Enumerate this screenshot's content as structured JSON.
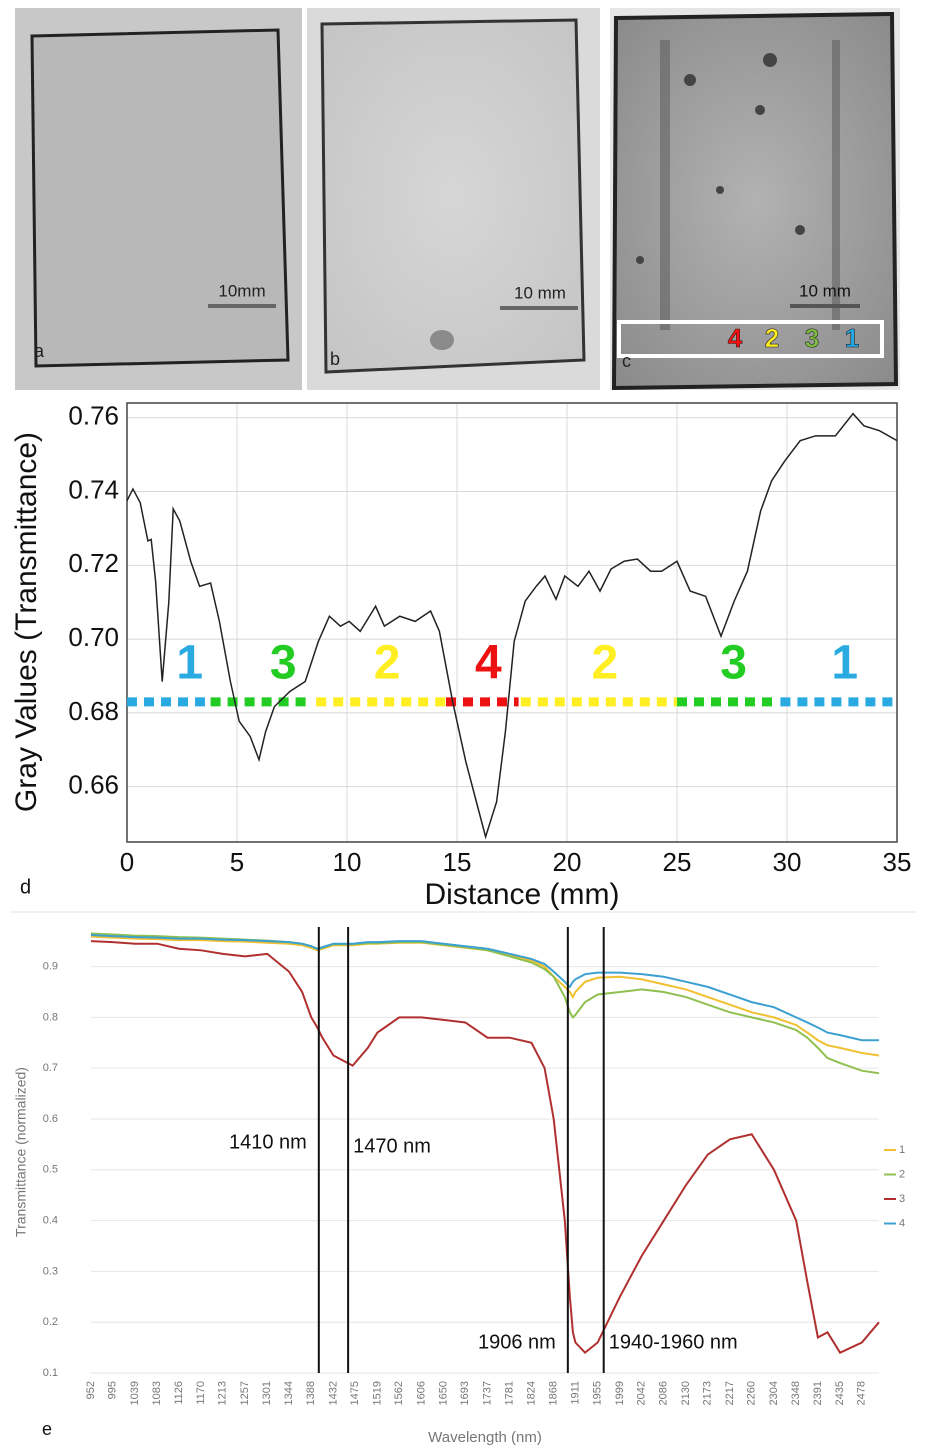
{
  "panels": [
    {
      "letter": "a",
      "scale_bar": "10mm"
    },
    {
      "letter": "b",
      "scale_bar": "10 mm"
    },
    {
      "letter": "c",
      "scale_bar": "10 mm",
      "markers": [
        {
          "label": "4",
          "color": "#ff1010"
        },
        {
          "label": "2",
          "color": "#ffee20"
        },
        {
          "label": "3",
          "color": "#80c040"
        },
        {
          "label": "1",
          "color": "#20a8e8"
        }
      ]
    }
  ],
  "chart_data": [
    {
      "type": "line",
      "panel": "d",
      "x_label": "Distance (mm)",
      "y_label": "Gray Values (Transmittance)",
      "xlim": [
        0,
        35
      ],
      "xticks": [
        0,
        5,
        10,
        15,
        20,
        25,
        30,
        35
      ],
      "ylim": [
        0.645,
        0.764
      ],
      "yticks": [
        0.66,
        0.68,
        {
          "value": 0.7,
          "label": "0.70"
        },
        0.72,
        0.74,
        0.76
      ],
      "grid": true,
      "frame": true,
      "color": "#222222",
      "x": [
        0,
        0.27,
        0.6,
        0.95,
        1.1,
        1.3,
        1.6,
        1.9,
        2.1,
        2.4,
        2.9,
        3.3,
        3.8,
        4.2,
        4.7,
        5.1,
        5.6,
        6.0,
        6.3,
        6.7,
        7.4,
        8.1,
        8.7,
        9.2,
        9.7,
        10.1,
        10.6,
        11.3,
        11.7,
        12.4,
        13.1,
        13.8,
        14.2,
        14.8,
        15.4,
        16.0,
        16.3,
        16.8,
        17.2,
        17.6,
        18.1,
        18.6,
        19.0,
        19.5,
        19.9,
        20.5,
        21.0,
        21.5,
        22.0,
        22.6,
        23.2,
        23.8,
        24.3,
        25.0,
        25.6,
        26.3,
        27.0,
        27.6,
        28.2,
        28.8,
        29.3,
        29.9,
        30.6,
        31.3,
        32.2,
        33.0,
        33.5,
        34.2,
        35.0
      ],
      "values": [
        0.7375,
        0.7407,
        0.737,
        0.7266,
        0.727,
        0.7157,
        0.6885,
        0.71,
        0.7353,
        0.732,
        0.721,
        0.7143,
        0.7152,
        0.7048,
        0.6885,
        0.6777,
        0.6736,
        0.6673,
        0.6749,
        0.6817,
        0.6858,
        0.6885,
        0.6994,
        0.7062,
        0.7035,
        0.7048,
        0.7021,
        0.7089,
        0.7035,
        0.7062,
        0.7048,
        0.7076,
        0.7021,
        0.6831,
        0.6668,
        0.6532,
        0.6464,
        0.6559,
        0.6749,
        0.6994,
        0.7103,
        0.7143,
        0.7171,
        0.7108,
        0.7171,
        0.7143,
        0.7184,
        0.713,
        0.719,
        0.7211,
        0.7217,
        0.7184,
        0.7184,
        0.7211,
        0.713,
        0.7116,
        0.7008,
        0.7103,
        0.7184,
        0.7347,
        0.7429,
        0.7483,
        0.7538,
        0.7551,
        0.7551,
        0.7611,
        0.7578,
        0.7565,
        0.7538
      ],
      "zone_level": 0.683,
      "zones": [
        {
          "label": "1",
          "color": "#29abe2",
          "start": 0,
          "end": 3.7
        },
        {
          "label": "3",
          "color": "#22cc22",
          "start": 3.8,
          "end": 8.4
        },
        {
          "label": "2",
          "color": "#ffee22",
          "start": 8.6,
          "end": 14.5
        },
        {
          "label": "4",
          "color": "#ee1111",
          "start": 14.5,
          "end": 17.8
        },
        {
          "label": "2",
          "color": "#ffee22",
          "start": 17.9,
          "end": 25.0
        },
        {
          "label": "3",
          "color": "#22cc22",
          "start": 25.0,
          "end": 29.6
        },
        {
          "label": "1",
          "color": "#29abe2",
          "start": 29.7,
          "end": 35.0
        }
      ]
    },
    {
      "type": "line",
      "panel": "e",
      "x_label": "Wavelength (nm)",
      "y_label": "Transmittance (normalized)",
      "xlim": [
        952,
        2512
      ],
      "xticks": [
        952,
        995,
        1039,
        1083,
        1126,
        1170,
        1213,
        1257,
        1301,
        1344,
        1388,
        1432,
        1475,
        1519,
        1562,
        1606,
        1650,
        1693,
        1737,
        1781,
        1824,
        1868,
        1911,
        1955,
        1999,
        2042,
        2086,
        2130,
        2173,
        2217,
        2260,
        2304,
        2348,
        2391,
        2435,
        2478
      ],
      "ylim": [
        0.1,
        0.97
      ],
      "yticks": [
        0.1,
        0.2,
        0.3,
        0.4,
        0.5,
        0.6,
        0.7,
        0.8,
        0.9
      ],
      "grid": true,
      "frame": false,
      "x": [
        952,
        995,
        1039,
        1083,
        1126,
        1170,
        1213,
        1257,
        1301,
        1344,
        1370,
        1388,
        1400,
        1410,
        1432,
        1470,
        1500,
        1519,
        1562,
        1606,
        1650,
        1693,
        1737,
        1781,
        1824,
        1850,
        1868,
        1890,
        1900,
        1906,
        1911,
        1930,
        1955,
        1999,
        2042,
        2086,
        2130,
        2173,
        2217,
        2260,
        2304,
        2348,
        2370,
        2391,
        2410,
        2435,
        2478,
        2512
      ],
      "series": [
        {
          "name": "1",
          "color": "#f0c030",
          "values": [
            0.959,
            0.957,
            0.955,
            0.954,
            0.952,
            0.952,
            0.95,
            0.949,
            0.947,
            0.945,
            0.942,
            0.937,
            0.932,
            0.935,
            0.942,
            0.942,
            0.945,
            0.945,
            0.947,
            0.947,
            0.942,
            0.937,
            0.932,
            0.922,
            0.912,
            0.9,
            0.88,
            0.86,
            0.85,
            0.84,
            0.85,
            0.87,
            0.878,
            0.88,
            0.875,
            0.865,
            0.855,
            0.84,
            0.825,
            0.81,
            0.8,
            0.785,
            0.77,
            0.755,
            0.745,
            0.74,
            0.73,
            0.725
          ]
        },
        {
          "name": "2",
          "color": "#8fc050",
          "values": [
            0.965,
            0.963,
            0.961,
            0.96,
            0.958,
            0.957,
            0.955,
            0.953,
            0.951,
            0.948,
            0.945,
            0.94,
            0.935,
            0.937,
            0.944,
            0.944,
            0.946,
            0.946,
            0.948,
            0.948,
            0.943,
            0.938,
            0.932,
            0.92,
            0.908,
            0.895,
            0.88,
            0.84,
            0.81,
            0.8,
            0.805,
            0.83,
            0.845,
            0.85,
            0.855,
            0.85,
            0.84,
            0.825,
            0.81,
            0.8,
            0.79,
            0.775,
            0.76,
            0.74,
            0.72,
            0.71,
            0.695,
            0.69
          ]
        },
        {
          "name": "3",
          "color": "#b03030",
          "values": [
            0.95,
            0.948,
            0.945,
            0.945,
            0.935,
            0.932,
            0.925,
            0.92,
            0.925,
            0.89,
            0.85,
            0.8,
            0.78,
            0.76,
            0.725,
            0.705,
            0.74,
            0.77,
            0.8,
            0.8,
            0.795,
            0.79,
            0.76,
            0.76,
            0.75,
            0.7,
            0.6,
            0.4,
            0.25,
            0.18,
            0.16,
            0.14,
            0.16,
            0.25,
            0.33,
            0.4,
            0.47,
            0.53,
            0.56,
            0.57,
            0.5,
            0.4,
            0.28,
            0.17,
            0.18,
            0.14,
            0.16,
            0.2
          ]
        },
        {
          "name": "4",
          "color": "#3ca0d0",
          "values": [
            0.962,
            0.96,
            0.958,
            0.957,
            0.955,
            0.955,
            0.953,
            0.952,
            0.95,
            0.948,
            0.945,
            0.94,
            0.935,
            0.938,
            0.945,
            0.945,
            0.948,
            0.948,
            0.95,
            0.95,
            0.945,
            0.94,
            0.935,
            0.925,
            0.915,
            0.905,
            0.89,
            0.87,
            0.86,
            0.87,
            0.875,
            0.885,
            0.888,
            0.888,
            0.885,
            0.88,
            0.87,
            0.86,
            0.845,
            0.83,
            0.82,
            0.8,
            0.79,
            0.78,
            0.77,
            0.765,
            0.755,
            0.755
          ]
        }
      ],
      "vlines": [
        {
          "x": 1403,
          "label": "1410 nm"
        },
        {
          "x": 1461,
          "label": "1470 nm"
        },
        {
          "x": 1896,
          "label": "1906 nm"
        },
        {
          "x": 1967,
          "label": "1940-1960 nm"
        }
      ]
    }
  ]
}
